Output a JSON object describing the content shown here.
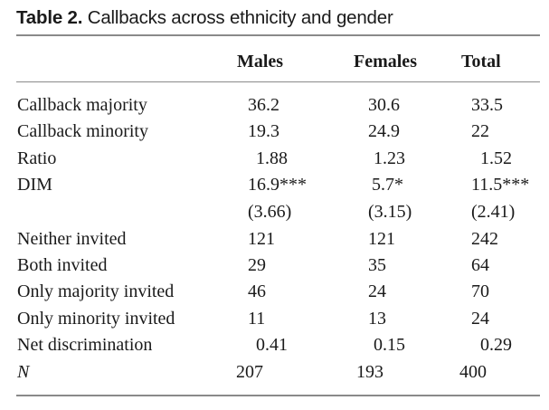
{
  "caption": {
    "label": "Table 2.",
    "title": " Callbacks across ethnicity and gender"
  },
  "columns": [
    "Males",
    "Females",
    "Total"
  ],
  "rows": [
    {
      "label": "Callback majority",
      "italic": false,
      "values": [
        "36.2",
        "30.6",
        "33.5"
      ]
    },
    {
      "label": "Callback minority",
      "italic": false,
      "values": [
        "19.3",
        "24.9",
        "22"
      ]
    },
    {
      "label": "Ratio",
      "italic": false,
      "values": [
        "1.88",
        "1.23",
        "1.52"
      ]
    },
    {
      "label": "DIM",
      "italic": false,
      "values": [
        "16.9***",
        "5.7*",
        "11.5***"
      ]
    },
    {
      "label": "",
      "italic": false,
      "values": [
        "(3.66)",
        "(3.15)",
        "(2.41)"
      ]
    },
    {
      "label": "Neither invited",
      "italic": false,
      "values": [
        "121",
        "121",
        "242"
      ]
    },
    {
      "label": "Both invited",
      "italic": false,
      "values": [
        "29",
        "35",
        "64"
      ]
    },
    {
      "label": "Only majority invited",
      "italic": false,
      "values": [
        "46",
        "24",
        "70"
      ]
    },
    {
      "label": "Only minority invited",
      "italic": false,
      "values": [
        "11",
        "13",
        "24"
      ]
    },
    {
      "label": "Net discrimination",
      "italic": false,
      "values": [
        "0.41",
        "0.15",
        "0.29"
      ]
    },
    {
      "label": "N",
      "italic": true,
      "values": [
        "207",
        "193",
        "400"
      ]
    }
  ]
}
